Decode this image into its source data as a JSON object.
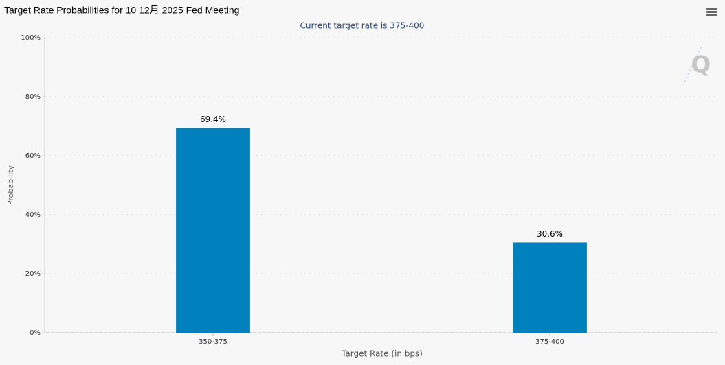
{
  "chart_data": {
    "type": "bar",
    "title": "Target Rate Probabilities for 10 12月 2025 Fed Meeting",
    "subtitle": "Current target rate is 375-400",
    "x_label": "Target Rate (in bps)",
    "y_label": "Probability",
    "categories": [
      "350-375",
      "375-400"
    ],
    "values": [
      69.4,
      30.6
    ],
    "value_labels": [
      "69.4%",
      "30.6%"
    ],
    "color": "#0080bc",
    "ylim": [
      0,
      100
    ],
    "yticks": [
      {
        "value": 0,
        "label": "0%"
      },
      {
        "value": 20,
        "label": "20%"
      },
      {
        "value": 40,
        "label": "40%"
      },
      {
        "value": 60,
        "label": "60%"
      },
      {
        "value": 80,
        "label": "80%"
      },
      {
        "value": 100,
        "label": "100%"
      }
    ],
    "grid": true
  }
}
